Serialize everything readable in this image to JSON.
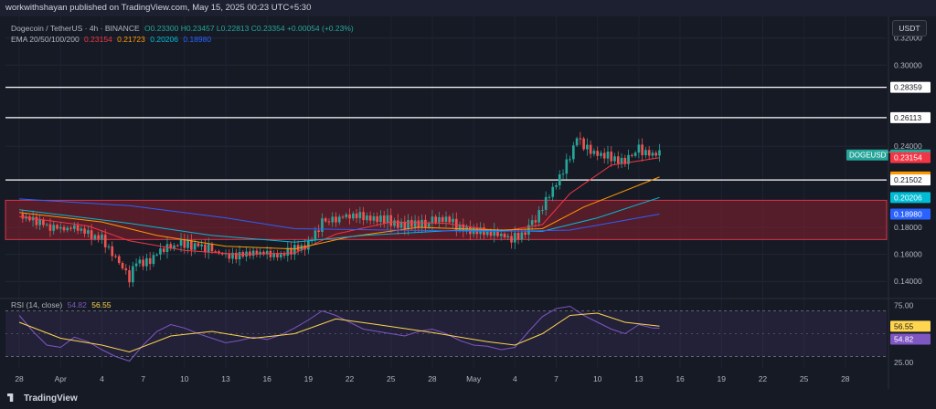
{
  "header": {
    "publisher_line": "workwithshayan published on TradingView.com, May 15, 2025 00:23 UTC+5:30"
  },
  "legend": {
    "symbol": "Dogecoin / TetherUS · 4h · BINANCE",
    "ohlc": "O0.23300 H0.23457 L0.22813 C0.23354 +0.00054 (+0.23%)",
    "ema_label": "EMA 20/50/100/200",
    "ema20": "0.23154",
    "ema50": "0.21723",
    "ema100": "0.20206",
    "ema200": "0.18980",
    "rsi_label": "RSI (14, close)",
    "rsi_value": "54.82",
    "rsi_ma_value": "56.55"
  },
  "currency_button": "USDT",
  "footer": {
    "logo_text": "TradingView"
  },
  "colors": {
    "up": "#26a69a",
    "down": "#ef5350",
    "ema20": "#f23645",
    "ema50": "#ff9800",
    "ema100": "#00bcd4",
    "ema200": "#2962ff",
    "zone_fill": "#8b1f2e",
    "rsi_line": "#7e57c2",
    "rsi_ma": "#ffd54f"
  },
  "chart_data": [
    {
      "type": "candlestick",
      "title": "Dogecoin / TetherUS · 4h · BINANCE",
      "x_tick_labels": [
        "28",
        "Apr",
        "4",
        "7",
        "10",
        "13",
        "16",
        "19",
        "22",
        "25",
        "28",
        "May",
        "4",
        "7",
        "10",
        "13",
        "16",
        "19",
        "22",
        "25",
        "28"
      ],
      "y_tick_labels": [
        "0.32000",
        "0.30000",
        "0.28359",
        "0.26113",
        "0.24000",
        "0.21502",
        "0.18000",
        "0.16000",
        "0.14000"
      ],
      "ylim": [
        0.128,
        0.336
      ],
      "horizontal_levels": [
        0.28359,
        0.26113,
        0.21502
      ],
      "zone": {
        "low": 0.171,
        "high": 0.2
      },
      "price_labels": [
        {
          "text": "DOGEUSDT",
          "value": "0.23354",
          "price": 0.23354,
          "color": "#26a69a"
        },
        {
          "text": "",
          "value": "0.23154",
          "price": 0.23154,
          "color": "#f23645"
        },
        {
          "text": "",
          "value": "0.21723",
          "price": 0.21723,
          "color": "#ff9800"
        },
        {
          "text": "",
          "value": "0.21502",
          "price": 0.21502,
          "color": "#ffffff"
        },
        {
          "text": "",
          "value": "0.20206",
          "price": 0.20206,
          "color": "#00bcd4"
        },
        {
          "text": "",
          "value": "0.18980",
          "price": 0.1898,
          "color": "#2962ff"
        }
      ],
      "price_path": [
        [
          0,
          0.19
        ],
        [
          1,
          0.184
        ],
        [
          2,
          0.182
        ],
        [
          3,
          0.178
        ],
        [
          4,
          0.18
        ],
        [
          5,
          0.176
        ],
        [
          6,
          0.172
        ],
        [
          7,
          0.158
        ],
        [
          8,
          0.142
        ],
        [
          8.5,
          0.156
        ],
        [
          9,
          0.153
        ],
        [
          10,
          0.16
        ],
        [
          11,
          0.165
        ],
        [
          12,
          0.168
        ],
        [
          13,
          0.166
        ],
        [
          14,
          0.163
        ],
        [
          15,
          0.159
        ],
        [
          16,
          0.158
        ],
        [
          17,
          0.161
        ],
        [
          18,
          0.16
        ],
        [
          19,
          0.159
        ],
        [
          20,
          0.164
        ],
        [
          21,
          0.168
        ],
        [
          22,
          0.184
        ],
        [
          23,
          0.186
        ],
        [
          24,
          0.19
        ],
        [
          25,
          0.188
        ],
        [
          26,
          0.186
        ],
        [
          27,
          0.185
        ],
        [
          28,
          0.182
        ],
        [
          29,
          0.182
        ],
        [
          30,
          0.184
        ],
        [
          31,
          0.185
        ],
        [
          32,
          0.181
        ],
        [
          33,
          0.178
        ],
        [
          34,
          0.176
        ],
        [
          35,
          0.173
        ],
        [
          36,
          0.172
        ],
        [
          37,
          0.178
        ],
        [
          38,
          0.195
        ],
        [
          39,
          0.212
        ],
        [
          40,
          0.232
        ],
        [
          40.5,
          0.246
        ],
        [
          41,
          0.238
        ],
        [
          42,
          0.235
        ],
        [
          43,
          0.232
        ],
        [
          44,
          0.228
        ],
        [
          45,
          0.238
        ],
        [
          46,
          0.234
        ],
        [
          46.5,
          0.2335
        ]
      ],
      "ema_paths": {
        "ema20": [
          [
            0,
            0.188
          ],
          [
            5,
            0.181
          ],
          [
            8,
            0.17
          ],
          [
            12,
            0.163
          ],
          [
            16,
            0.16
          ],
          [
            20,
            0.161
          ],
          [
            23,
            0.175
          ],
          [
            27,
            0.184
          ],
          [
            31,
            0.183
          ],
          [
            35,
            0.177
          ],
          [
            38,
            0.182
          ],
          [
            40,
            0.205
          ],
          [
            43,
            0.226
          ],
          [
            46.5,
            0.2315
          ]
        ],
        "ema50": [
          [
            0,
            0.191
          ],
          [
            6,
            0.184
          ],
          [
            10,
            0.174
          ],
          [
            15,
            0.166
          ],
          [
            20,
            0.164
          ],
          [
            24,
            0.173
          ],
          [
            29,
            0.18
          ],
          [
            35,
            0.178
          ],
          [
            38,
            0.179
          ],
          [
            41,
            0.195
          ],
          [
            46.5,
            0.2172
          ]
        ],
        "ema100": [
          [
            0,
            0.193
          ],
          [
            8,
            0.183
          ],
          [
            14,
            0.174
          ],
          [
            20,
            0.169
          ],
          [
            25,
            0.174
          ],
          [
            32,
            0.178
          ],
          [
            38,
            0.177
          ],
          [
            42,
            0.187
          ],
          [
            46.5,
            0.2021
          ]
        ],
        "ema200": [
          [
            0,
            0.201
          ],
          [
            8,
            0.196
          ],
          [
            15,
            0.187
          ],
          [
            20,
            0.179
          ],
          [
            27,
            0.178
          ],
          [
            35,
            0.177
          ],
          [
            40,
            0.178
          ],
          [
            46.5,
            0.1898
          ]
        ]
      }
    },
    {
      "type": "line",
      "title": "RSI (14, close)",
      "y_tick_labels": [
        "75.00",
        "25.00"
      ],
      "ylim": [
        20,
        80
      ],
      "band": [
        30,
        70
      ],
      "rsi_path": [
        [
          0,
          66
        ],
        [
          1,
          52
        ],
        [
          2,
          40
        ],
        [
          3,
          38
        ],
        [
          4,
          47
        ],
        [
          5,
          43
        ],
        [
          6,
          36
        ],
        [
          7,
          30
        ],
        [
          8,
          26
        ],
        [
          9,
          40
        ],
        [
          10,
          52
        ],
        [
          11,
          58
        ],
        [
          12,
          55
        ],
        [
          13,
          50
        ],
        [
          14,
          46
        ],
        [
          15,
          42
        ],
        [
          16,
          44
        ],
        [
          17,
          47
        ],
        [
          18,
          45
        ],
        [
          19,
          49
        ],
        [
          20,
          55
        ],
        [
          21,
          62
        ],
        [
          22,
          70
        ],
        [
          23,
          66
        ],
        [
          24,
          60
        ],
        [
          25,
          54
        ],
        [
          26,
          52
        ],
        [
          27,
          50
        ],
        [
          28,
          48
        ],
        [
          29,
          52
        ],
        [
          30,
          54
        ],
        [
          31,
          50
        ],
        [
          32,
          44
        ],
        [
          33,
          40
        ],
        [
          34,
          39
        ],
        [
          35,
          36
        ],
        [
          36,
          38
        ],
        [
          37,
          52
        ],
        [
          38,
          65
        ],
        [
          39,
          72
        ],
        [
          40,
          74
        ],
        [
          41,
          66
        ],
        [
          42,
          60
        ],
        [
          43,
          54
        ],
        [
          44,
          50
        ],
        [
          45,
          58
        ],
        [
          46,
          55
        ],
        [
          46.5,
          54.82
        ]
      ],
      "rsi_ma_path": [
        [
          0,
          60
        ],
        [
          3,
          46
        ],
        [
          6,
          40
        ],
        [
          8,
          34
        ],
        [
          11,
          48
        ],
        [
          14,
          52
        ],
        [
          17,
          46
        ],
        [
          20,
          50
        ],
        [
          23,
          63
        ],
        [
          26,
          58
        ],
        [
          30,
          51
        ],
        [
          34,
          43
        ],
        [
          36,
          40
        ],
        [
          38,
          50
        ],
        [
          40,
          66
        ],
        [
          42,
          68
        ],
        [
          44,
          60
        ],
        [
          46.5,
          56.55
        ]
      ]
    }
  ]
}
